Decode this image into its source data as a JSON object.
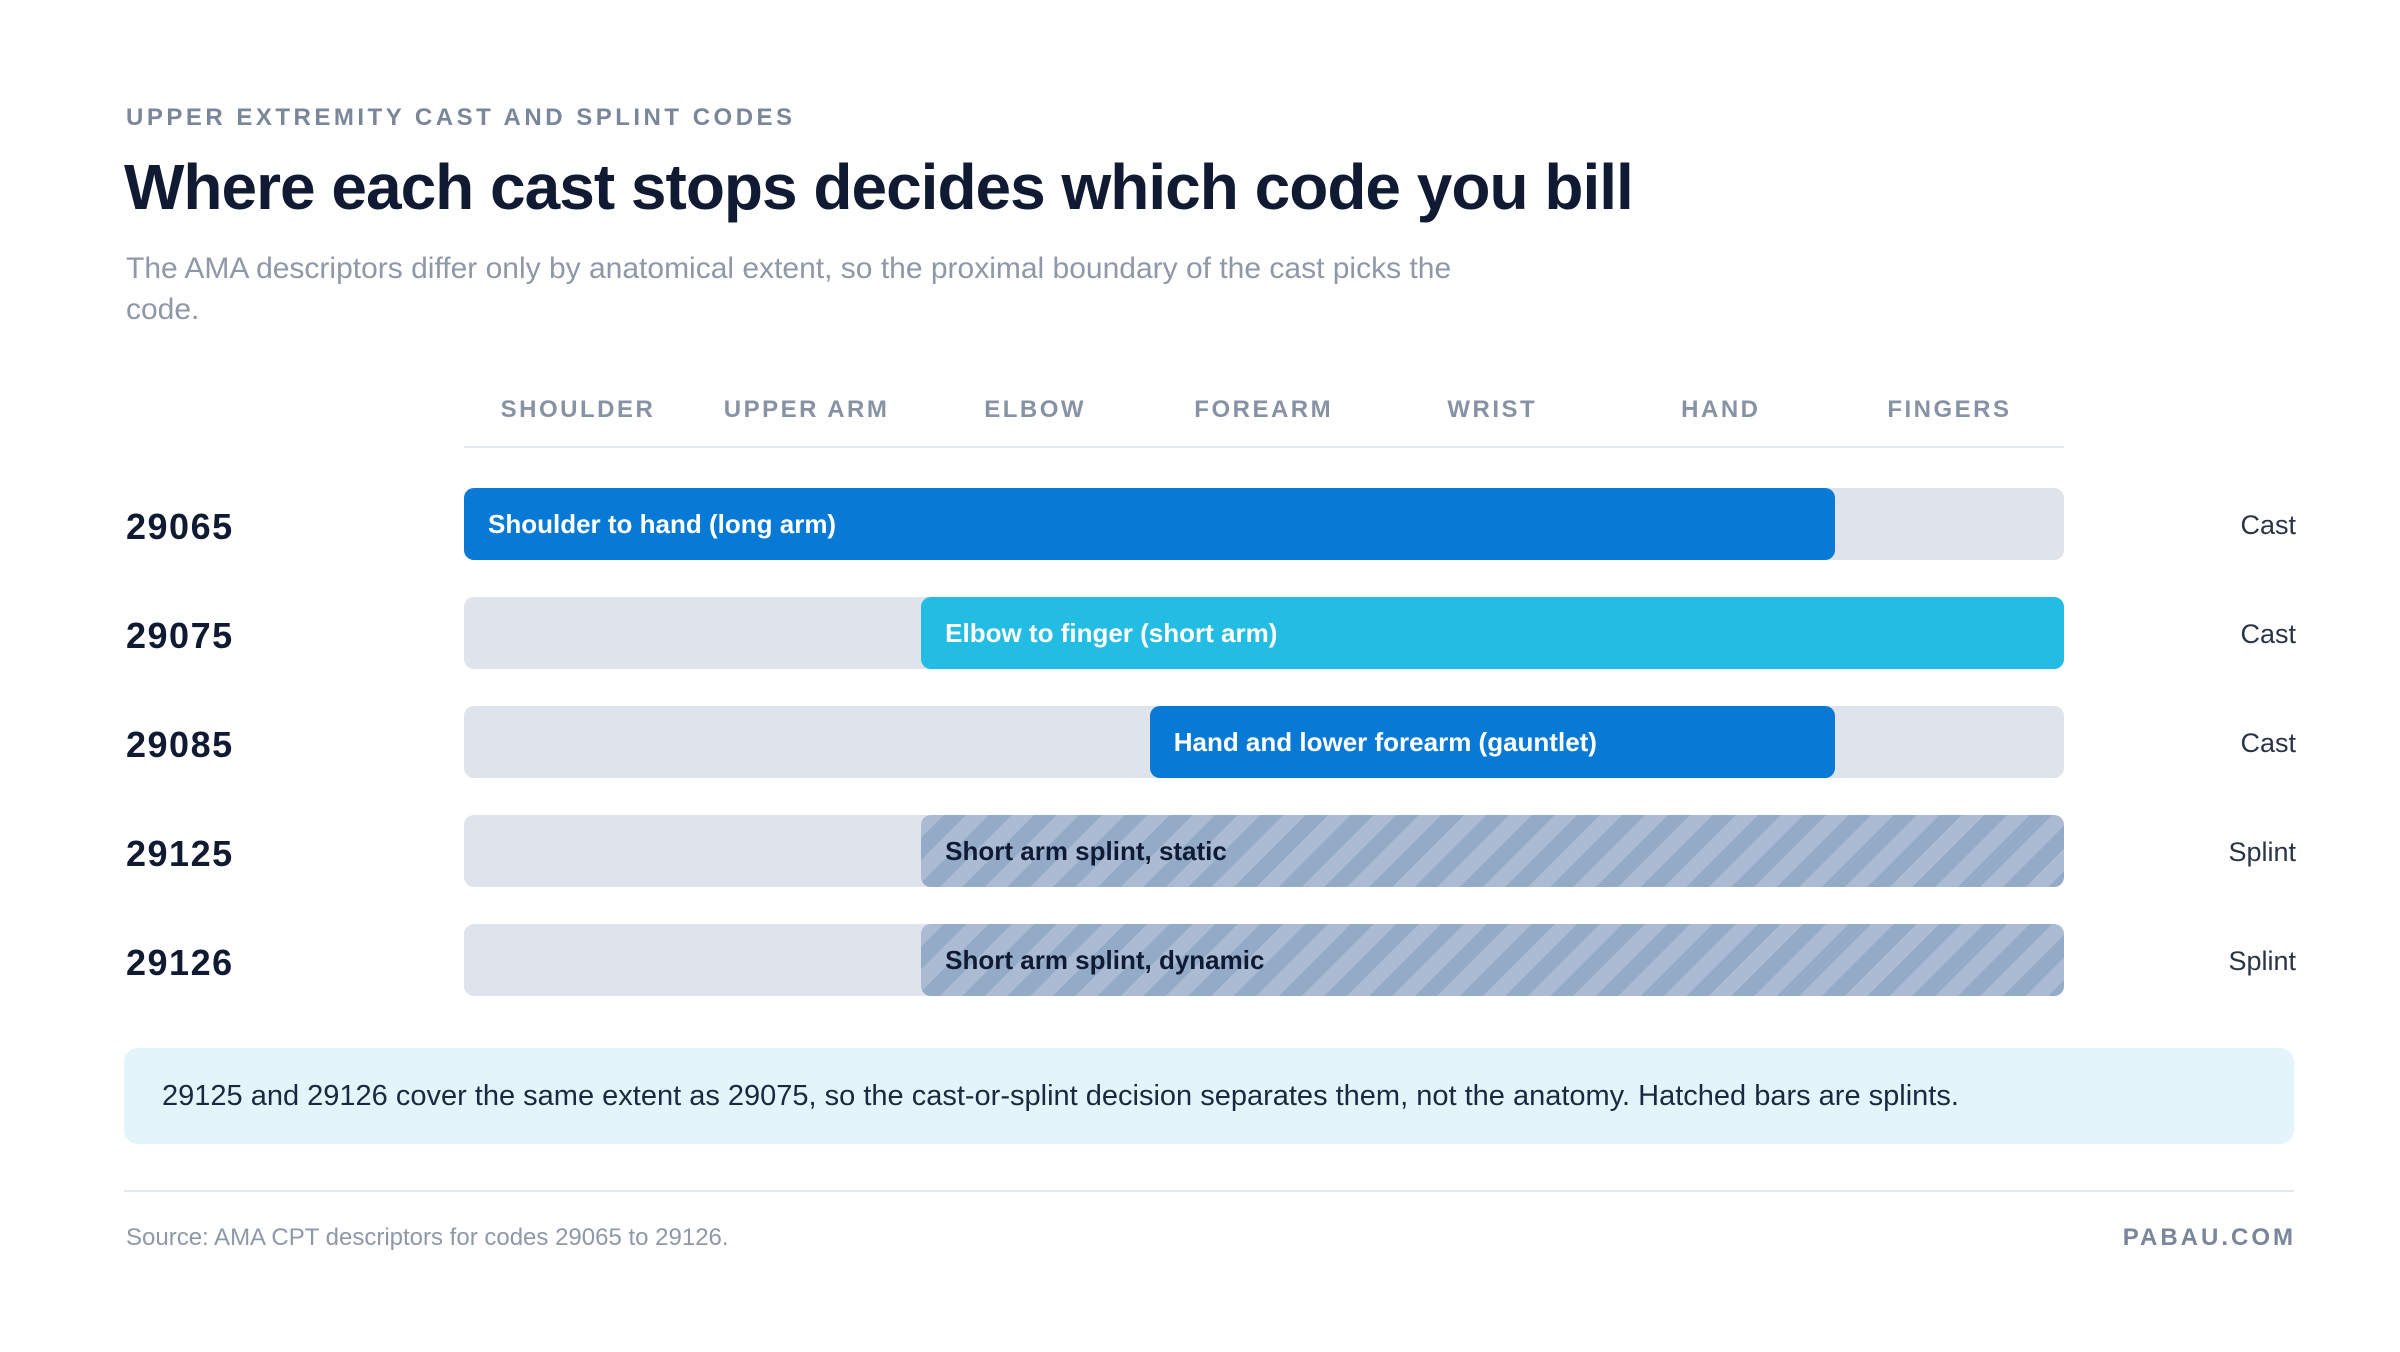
{
  "header": {
    "eyebrow": "UPPER EXTREMITY CAST AND SPLINT CODES",
    "title": "Where each cast stops decides which code you bill",
    "subtitle": "The AMA descriptors differ only by anatomical extent, so the proximal boundary of the cast picks the code."
  },
  "chart_data": {
    "type": "bar",
    "orientation": "horizontal-range",
    "columns": [
      "SHOULDER",
      "UPPER ARM",
      "ELBOW",
      "FOREARM",
      "WRIST",
      "HAND",
      "FINGERS"
    ],
    "rows": [
      {
        "code": "29065",
        "label": "Shoulder to hand (long arm)",
        "start": "SHOULDER",
        "end": "HAND",
        "kind": "Cast",
        "style": "cast-dark"
      },
      {
        "code": "29075",
        "label": "Elbow to finger (short arm)",
        "start": "ELBOW",
        "end": "FINGERS",
        "kind": "Cast",
        "style": "cast-light"
      },
      {
        "code": "29085",
        "label": "Hand and lower forearm (gauntlet)",
        "start": "FOREARM",
        "end": "HAND",
        "kind": "Cast",
        "style": "cast-dark"
      },
      {
        "code": "29125",
        "label": "Short arm splint, static",
        "start": "ELBOW",
        "end": "FINGERS",
        "kind": "Splint",
        "style": "splint"
      },
      {
        "code": "29126",
        "label": "Short arm splint, dynamic",
        "start": "ELBOW",
        "end": "FINGERS",
        "kind": "Splint",
        "style": "splint"
      }
    ],
    "colors": {
      "cast_dark": "#0879d4",
      "cast_light": "#23bce2",
      "splint": "#aabbd3",
      "track": "#dfe3ec"
    }
  },
  "note": "29125 and 29126 cover the same extent as 29075, so the cast-or-splint decision separates them, not the anatomy. Hatched bars are splints.",
  "footer": {
    "source": "Source: AMA CPT descriptors for codes 29065 to 29126.",
    "brand": "PABAU.COM"
  }
}
